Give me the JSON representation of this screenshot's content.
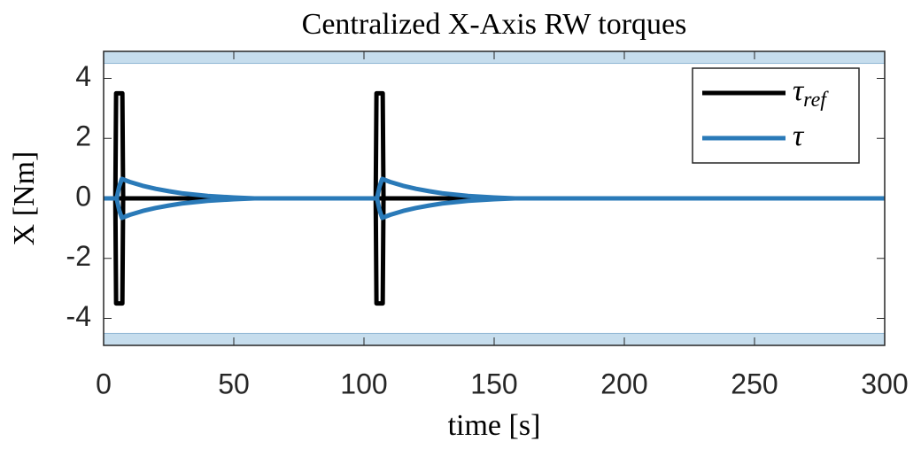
{
  "chart_data": {
    "type": "line",
    "title": "Centralized X-Axis RW torques",
    "xlabel": "time [s]",
    "ylabel": "X [Nm]",
    "xlim": [
      0,
      300
    ],
    "xticks": [
      0,
      50,
      100,
      150,
      200,
      250,
      300
    ],
    "ylim": [
      -4.9,
      4.9
    ],
    "yticks": [
      -4,
      -2,
      0,
      2,
      4
    ],
    "bands": [
      [
        4.5,
        4.9
      ],
      [
        -4.9,
        -4.5
      ]
    ],
    "band_color": "#c6dded",
    "legend": "upper right",
    "series": [
      {
        "name": "τref",
        "color": "#000000",
        "x": [
          0,
          4.5,
          4.8,
          7.2,
          7.5,
          7.2,
          4.8,
          4.5,
          7.5,
          104.5,
          104.8,
          107.2,
          107.5,
          107.2,
          104.8,
          104.5,
          107.5,
          300
        ],
        "values": [
          0,
          0,
          3.5,
          3.5,
          0,
          -3.5,
          -3.5,
          0,
          0,
          0,
          3.5,
          3.5,
          0,
          -3.5,
          -3.5,
          0,
          0,
          0
        ]
      },
      {
        "name": "τ",
        "color": "#2a7ab8",
        "x": [
          0,
          5,
          6,
          7,
          10,
          15,
          20,
          25,
          30,
          40,
          50,
          58,
          104,
          105,
          106,
          107,
          110,
          115,
          120,
          125,
          130,
          140,
          150,
          158,
          300,
          null,
          5,
          6,
          7,
          10,
          15,
          20,
          25,
          30,
          40,
          50,
          58,
          null,
          105,
          106,
          107,
          110,
          115,
          120,
          125,
          130,
          140,
          150,
          158
        ],
        "values": [
          0,
          0,
          0.4,
          0.65,
          0.55,
          0.42,
          0.32,
          0.24,
          0.17,
          0.08,
          0.03,
          0,
          0,
          0,
          0.4,
          0.65,
          0.55,
          0.42,
          0.32,
          0.24,
          0.17,
          0.08,
          0.03,
          0,
          0,
          null,
          0,
          -0.4,
          -0.65,
          -0.55,
          -0.42,
          -0.32,
          -0.24,
          -0.17,
          -0.08,
          -0.03,
          0,
          null,
          0,
          -0.4,
          -0.65,
          -0.55,
          -0.42,
          -0.32,
          -0.24,
          -0.17,
          -0.08,
          -0.03,
          0
        ]
      }
    ]
  }
}
